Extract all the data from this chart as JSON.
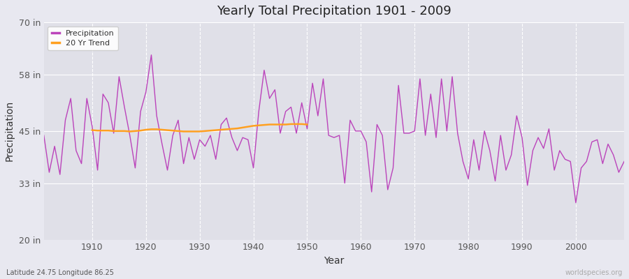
{
  "title": "Yearly Total Precipitation 1901 - 2009",
  "xlabel": "Year",
  "ylabel": "Precipitation",
  "lat_lon_label": "Latitude 24.75 Longitude 86.25",
  "watermark": "worldspecies.org",
  "ylim": [
    20,
    70
  ],
  "yticks": [
    20,
    33,
    45,
    58,
    70
  ],
  "ytick_labels": [
    "20 in",
    "33 in",
    "45 in",
    "58 in",
    "70 in"
  ],
  "xlim": [
    1901,
    2009
  ],
  "xticks": [
    1910,
    1920,
    1930,
    1940,
    1950,
    1960,
    1970,
    1980,
    1990,
    2000
  ],
  "precip_color": "#BB44BB",
  "trend_color": "#FFA020",
  "bg_color": "#E0E0E8",
  "fig_bg_color": "#E8E8F0",
  "grid_color": "#FFFFFF",
  "years": [
    1901,
    1902,
    1903,
    1904,
    1905,
    1906,
    1907,
    1908,
    1909,
    1910,
    1911,
    1912,
    1913,
    1914,
    1915,
    1916,
    1917,
    1918,
    1919,
    1920,
    1921,
    1922,
    1923,
    1924,
    1925,
    1926,
    1927,
    1928,
    1929,
    1930,
    1931,
    1932,
    1933,
    1934,
    1935,
    1936,
    1937,
    1938,
    1939,
    1940,
    1941,
    1942,
    1943,
    1944,
    1945,
    1946,
    1947,
    1948,
    1949,
    1950,
    1951,
    1952,
    1953,
    1954,
    1955,
    1956,
    1957,
    1958,
    1959,
    1960,
    1961,
    1962,
    1963,
    1964,
    1965,
    1966,
    1967,
    1968,
    1969,
    1970,
    1971,
    1972,
    1973,
    1974,
    1975,
    1976,
    1977,
    1978,
    1979,
    1980,
    1981,
    1982,
    1983,
    1984,
    1985,
    1986,
    1987,
    1988,
    1989,
    1990,
    1991,
    1992,
    1993,
    1994,
    1995,
    1996,
    1997,
    1998,
    1999,
    2000,
    2001,
    2002,
    2003,
    2004,
    2005,
    2006,
    2007,
    2008,
    2009
  ],
  "precip": [
    44.0,
    35.5,
    41.5,
    35.0,
    47.5,
    52.5,
    40.5,
    37.5,
    52.5,
    46.0,
    36.0,
    53.5,
    51.5,
    44.5,
    57.5,
    50.5,
    44.0,
    36.5,
    49.5,
    54.0,
    62.5,
    48.5,
    42.0,
    36.0,
    44.0,
    47.5,
    37.5,
    43.5,
    38.5,
    43.0,
    41.5,
    44.0,
    38.5,
    46.5,
    48.0,
    43.5,
    40.5,
    43.5,
    43.0,
    36.5,
    49.5,
    59.0,
    52.5,
    54.5,
    44.5,
    49.5,
    50.5,
    44.5,
    51.5,
    45.5,
    56.0,
    48.5,
    57.0,
    44.0,
    43.5,
    44.0,
    33.0,
    47.5,
    45.0,
    45.0,
    42.5,
    31.0,
    46.5,
    44.0,
    31.5,
    36.5,
    55.5,
    44.5,
    44.5,
    45.0,
    57.0,
    44.0,
    53.5,
    43.5,
    57.0,
    45.0,
    57.5,
    44.5,
    38.0,
    34.0,
    43.0,
    36.0,
    45.0,
    40.5,
    33.5,
    44.0,
    36.0,
    39.5,
    48.5,
    43.5,
    32.5,
    40.5,
    43.5,
    41.0,
    45.5,
    36.0,
    40.5,
    38.5,
    38.0,
    28.5,
    36.5,
    38.0,
    42.5,
    43.0,
    37.5,
    42.0,
    39.5,
    35.5,
    38.0
  ],
  "trend_years": [
    1910,
    1911,
    1912,
    1913,
    1914,
    1915,
    1916,
    1917,
    1918,
    1919,
    1920,
    1921,
    1922,
    1923,
    1924,
    1925,
    1926,
    1927,
    1928,
    1929,
    1930,
    1931,
    1932,
    1933,
    1934,
    1935,
    1936,
    1937,
    1938,
    1939,
    1940,
    1941,
    1942,
    1943,
    1944,
    1945,
    1946,
    1947,
    1948,
    1949,
    1950
  ],
  "trend": [
    45.2,
    45.1,
    45.1,
    45.1,
    45.0,
    45.0,
    45.0,
    44.9,
    45.0,
    45.1,
    45.3,
    45.4,
    45.4,
    45.3,
    45.2,
    45.1,
    45.0,
    44.9,
    44.9,
    44.9,
    44.9,
    45.0,
    45.1,
    45.2,
    45.3,
    45.4,
    45.5,
    45.6,
    45.8,
    46.0,
    46.2,
    46.3,
    46.4,
    46.5,
    46.5,
    46.5,
    46.5,
    46.6,
    46.6,
    46.6,
    46.5
  ]
}
